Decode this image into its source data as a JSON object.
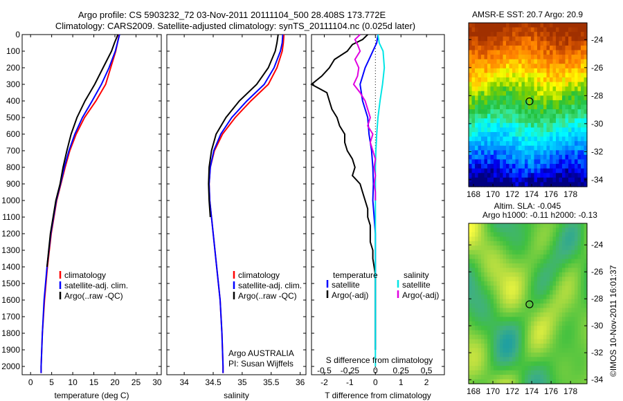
{
  "header": {
    "line1": "Argo profile: CS 5903232_72 03-Nov-2011 20111104_500 28.408S 173.772E",
    "line2": "Climatology: CARS2009. Satellite-adjusted climatology: synTS_20111104.nc (0.025d later)"
  },
  "colors": {
    "climatology": "#ff0000",
    "satellite": "#0000ff",
    "argo": "#000000",
    "salinity_satellite": "#00e5e5",
    "salinity_argo": "#e000e0"
  },
  "chart_data": [
    {
      "type": "line",
      "panel": "temperature",
      "xlabel": "temperature (deg C)",
      "ylabel": "",
      "xlim": [
        -2,
        31
      ],
      "ylim": [
        2050,
        0
      ],
      "xticks": [
        0,
        5,
        10,
        15,
        20,
        25,
        30
      ],
      "yticks": [
        0,
        100,
        200,
        300,
        400,
        500,
        600,
        700,
        800,
        900,
        1000,
        1100,
        1200,
        1300,
        1400,
        1500,
        1600,
        1700,
        1800,
        1900,
        2000
      ],
      "legend": [
        "climatology",
        "satellite-adj. clim.",
        "Argo(..raw -QC)"
      ],
      "series": [
        {
          "name": "climatology",
          "color": "#ff0000",
          "y": [
            0,
            50,
            100,
            200,
            300,
            400,
            500,
            600,
            700,
            800,
            900,
            1000,
            1200,
            1400,
            1600,
            1800,
            2000,
            2040
          ],
          "x": [
            21.0,
            20.6,
            20.2,
            19.0,
            17.8,
            15.5,
            12.8,
            10.8,
            9.3,
            8.2,
            7.2,
            6.2,
            4.9,
            4.0,
            3.3,
            2.8,
            2.5,
            2.5
          ]
        },
        {
          "name": "satellite-adj. clim.",
          "color": "#0000ff",
          "y": [
            0,
            50,
            100,
            200,
            300,
            400,
            500,
            600,
            700,
            800,
            900,
            1000,
            1200,
            1400,
            1600,
            1800,
            2000,
            2040
          ],
          "x": [
            21.1,
            20.6,
            20.1,
            18.6,
            16.8,
            14.6,
            12.3,
            10.5,
            9.1,
            8.0,
            7.1,
            6.1,
            4.8,
            3.9,
            3.2,
            2.8,
            2.5,
            2.5
          ]
        },
        {
          "name": "Argo(..raw -QC)",
          "color": "#000000",
          "y": [
            0,
            50,
            100,
            200,
            300,
            400,
            500,
            600,
            700,
            800,
            900,
            1000,
            1200,
            1400
          ],
          "x": [
            20.7,
            19.9,
            19.2,
            17.2,
            15.2,
            12.9,
            11.0,
            9.6,
            8.6,
            7.7,
            7.0,
            6.0,
            4.7,
            3.9
          ]
        }
      ]
    },
    {
      "type": "line",
      "panel": "salinity",
      "xlabel": "salinity",
      "ylabel": "",
      "xlim": [
        33.7,
        36.1
      ],
      "ylim": [
        2050,
        0
      ],
      "xticks": [
        34,
        34.5,
        35,
        35.5,
        36
      ],
      "xticklabels": [
        "34",
        "34.5",
        "35",
        "35.5",
        "36"
      ],
      "legend": [
        "climatology",
        "satellite-adj. clim.",
        "Argo(..raw -QC)"
      ],
      "annotation": [
        "Argo AUSTRALIA",
        "PI: Susan Wijffels"
      ],
      "series": [
        {
          "name": "climatology",
          "color": "#ff0000",
          "y": [
            0,
            50,
            100,
            200,
            300,
            400,
            500,
            600,
            700,
            800,
            900,
            1000,
            1200,
            1400,
            1600,
            1800,
            2000,
            2040
          ],
          "x": [
            35.72,
            35.71,
            35.69,
            35.6,
            35.45,
            35.15,
            34.88,
            34.66,
            34.52,
            34.45,
            34.43,
            34.44,
            34.5,
            34.56,
            34.62,
            34.65,
            34.67,
            34.67
          ]
        },
        {
          "name": "satellite-adj. clim.",
          "color": "#0000ff",
          "y": [
            0,
            50,
            100,
            200,
            300,
            400,
            500,
            600,
            700,
            800,
            900,
            1000,
            1200,
            1400,
            1600,
            1800,
            2000,
            2040
          ],
          "x": [
            35.7,
            35.69,
            35.66,
            35.55,
            35.38,
            35.08,
            34.82,
            34.63,
            34.51,
            34.45,
            34.43,
            34.44,
            34.5,
            34.56,
            34.62,
            34.65,
            34.67,
            34.67
          ]
        },
        {
          "name": "Argo(..raw -QC)",
          "color": "#000000",
          "y": [
            0,
            50,
            100,
            200,
            300,
            400,
            500,
            600,
            700,
            800,
            900,
            1000,
            1100
          ],
          "x": [
            35.62,
            35.6,
            35.57,
            35.45,
            35.25,
            34.95,
            34.72,
            34.55,
            34.47,
            34.43,
            34.42,
            34.43,
            34.45
          ]
        }
      ]
    },
    {
      "type": "line",
      "panel": "difference",
      "xlabel": "T difference from climatology",
      "secondary_xlabel": "S difference from climatology",
      "xlim": [
        -2.5,
        2.7
      ],
      "ylim": [
        2050,
        0
      ],
      "xticks": [
        -2,
        -1,
        0,
        1,
        2
      ],
      "xticklabels": [
        "-2",
        "-1",
        "0",
        "1",
        "2"
      ],
      "secondary_ticks": [
        -0.5,
        -0.25,
        0,
        0.25,
        0.5
      ],
      "secondary_ticklabels": [
        "-0.5",
        "-0.25",
        "0",
        "0.25",
        "0.5"
      ],
      "legend_temperature": [
        "temperature",
        "satellite",
        "Argo(-adj)"
      ],
      "legend_salinity": [
        "salinity",
        "satellite",
        "Argo(-adj)"
      ],
      "series": [
        {
          "name": "temperature satellite",
          "color": "#0000ff",
          "y": [
            0,
            50,
            100,
            150,
            200,
            300,
            400,
            500,
            600,
            700,
            800,
            900,
            1000,
            1100,
            1200,
            1400,
            1600,
            1800,
            1900
          ],
          "x": [
            0.1,
            0.05,
            -0.1,
            -0.25,
            -0.4,
            -0.6,
            -0.5,
            -0.3,
            -0.25,
            -0.15,
            -0.1,
            -0.08,
            -0.1,
            -0.05,
            0.0,
            0.0,
            0.0,
            0.0,
            0.0
          ]
        },
        {
          "name": "temperature Argo(-adj)",
          "color": "#000000",
          "y": [
            0,
            30,
            60,
            100,
            150,
            200,
            250,
            300,
            350,
            400,
            450,
            500,
            550,
            600,
            650,
            700,
            750,
            800,
            850,
            900,
            950,
            1000,
            1050,
            1100,
            1150,
            1200,
            1250,
            1300,
            1350,
            1400,
            1450,
            1500,
            1600,
            1700,
            1800,
            1900
          ],
          "x": [
            -0.3,
            -0.5,
            -0.9,
            -1.1,
            -1.6,
            -1.8,
            -2.1,
            -2.5,
            -1.9,
            -1.8,
            -1.7,
            -1.5,
            -1.4,
            -1.2,
            -1.2,
            -1.1,
            -0.9,
            -0.8,
            -0.9,
            -0.6,
            -0.5,
            -0.4,
            -0.3,
            -0.3,
            -0.2,
            -0.2,
            -0.2,
            -0.1,
            -0.1,
            -0.05,
            0.0,
            0.0,
            0.0,
            0.0,
            0.0,
            0.0
          ]
        },
        {
          "name": "salinity satellite",
          "color": "#00e5e5",
          "y": [
            0,
            50,
            100,
            200,
            300,
            400,
            500,
            600,
            700,
            800,
            1000,
            1200,
            1400,
            1600,
            1800,
            2000
          ],
          "x": [
            0.1,
            0.15,
            0.3,
            0.35,
            0.28,
            0.18,
            0.1,
            0.05,
            0.02,
            0.0,
            0.0,
            0.0,
            0.0,
            0.0,
            0.0,
            0.0
          ]
        },
        {
          "name": "salinity Argo(-adj)",
          "color": "#e000e0",
          "y": [
            0,
            30,
            60,
            100,
            150,
            200,
            250,
            300,
            350,
            400,
            450,
            500,
            550,
            600,
            650,
            700,
            750,
            800,
            850,
            900,
            950,
            1000
          ],
          "x": [
            -0.6,
            -0.8,
            -0.7,
            -0.6,
            -0.8,
            -0.65,
            -0.7,
            -0.85,
            -0.6,
            -0.4,
            -0.3,
            -0.2,
            -0.3,
            -0.1,
            -0.2,
            -0.1,
            0.0,
            -0.05,
            0.0,
            -0.05,
            0.0,
            0.0
          ]
        }
      ]
    },
    {
      "type": "heatmap",
      "panel": "sst-map",
      "title": "AMSR-E SST: 20.7 Argo: 20.9",
      "xlim": [
        167.5,
        179.7
      ],
      "ylim": [
        -34.5,
        -22.8
      ],
      "xticks": [
        168,
        170,
        172,
        174,
        176,
        178
      ],
      "yticks": [
        -24,
        -26,
        -28,
        -30,
        -32,
        -34
      ],
      "profile_location": {
        "lon": 173.772,
        "lat": -28.408
      },
      "colormap": [
        "#000080",
        "#0000ff",
        "#0080ff",
        "#00c0ff",
        "#00ffff",
        "#40e080",
        "#20c040",
        "#80d000",
        "#ffff00",
        "#ffb000",
        "#ff8000",
        "#d05000",
        "#a03000"
      ]
    },
    {
      "type": "heatmap",
      "panel": "sla-map",
      "title": "Altim. SLA: -0.045",
      "subtitle": "Argo h1000: -0.11 h2000: -0.13",
      "xlim": [
        167.5,
        179.7
      ],
      "ylim": [
        -34.3,
        -22.4
      ],
      "xticks": [
        168,
        170,
        172,
        174,
        176,
        178
      ],
      "yticks": [
        -24,
        -26,
        -28,
        -30,
        -32,
        -34
      ],
      "profile_location": {
        "lon": 173.772,
        "lat": -28.408
      },
      "colormap": [
        "#20a0a0",
        "#40b080",
        "#40c040",
        "#80d040",
        "#c0e040",
        "#ffff40"
      ]
    }
  ],
  "stamp": "©IMOS 10-Nov-2011 16:01:37"
}
